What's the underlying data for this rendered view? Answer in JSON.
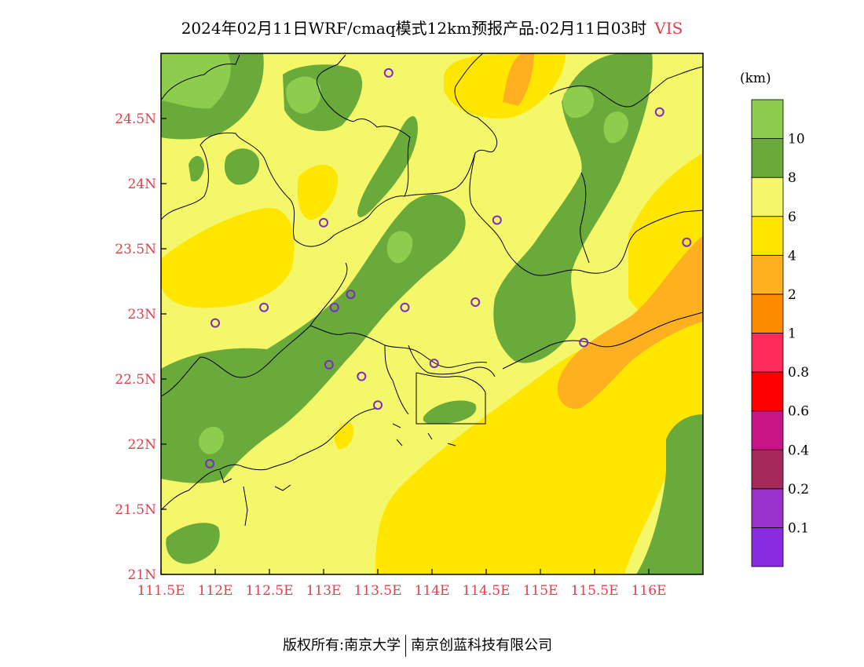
{
  "title": {
    "main": "2024年02月11日WRF/cmaq模式12km预报产品:02月11日03时",
    "variable": "VIS"
  },
  "colorbar": {
    "unit": "(km)",
    "colors": [
      "#8a2be2",
      "#9932cc",
      "#a52a5a",
      "#c71585",
      "#ff0000",
      "#ff2a5a",
      "#ff8c00",
      "#ffb020",
      "#ffe600",
      "#f5f76a",
      "#6aaa3a",
      "#8ecc4e"
    ],
    "labels": [
      "0.1",
      "0.2",
      "0.4",
      "0.6",
      "0.8",
      "1",
      "2",
      "4",
      "6",
      "8",
      "10"
    ]
  },
  "map": {
    "lon_range": [
      111.5,
      116.5
    ],
    "lat_range": [
      21.0,
      25.0
    ],
    "x_ticks": [
      "111.5E",
      "112E",
      "112.5E",
      "113E",
      "113.5E",
      "114E",
      "114.5E",
      "115E",
      "115.5E",
      "116E"
    ],
    "y_ticks": [
      "21N",
      "21.5N",
      "22N",
      "22.5N",
      "23N",
      "23.5N",
      "24N",
      "24.5N"
    ],
    "station_color": "#7b2cc8",
    "stations": [
      {
        "lon": 113.6,
        "lat": 24.85
      },
      {
        "lon": 116.1,
        "lat": 24.55
      },
      {
        "lon": 113.0,
        "lat": 23.7
      },
      {
        "lon": 114.6,
        "lat": 23.72
      },
      {
        "lon": 116.35,
        "lat": 23.55
      },
      {
        "lon": 112.45,
        "lat": 23.05
      },
      {
        "lon": 113.1,
        "lat": 23.05
      },
      {
        "lon": 113.25,
        "lat": 23.15
      },
      {
        "lon": 113.75,
        "lat": 23.05
      },
      {
        "lon": 114.4,
        "lat": 23.09
      },
      {
        "lon": 112.0,
        "lat": 22.93
      },
      {
        "lon": 115.4,
        "lat": 22.78
      },
      {
        "lon": 113.05,
        "lat": 22.61
      },
      {
        "lon": 113.35,
        "lat": 22.52
      },
      {
        "lon": 114.02,
        "lat": 22.62
      },
      {
        "lon": 113.5,
        "lat": 22.3
      },
      {
        "lon": 111.95,
        "lat": 21.85
      }
    ]
  },
  "footer": {
    "left": "版权所有:南京大学",
    "right": "南京创蓝科技有限公司"
  }
}
